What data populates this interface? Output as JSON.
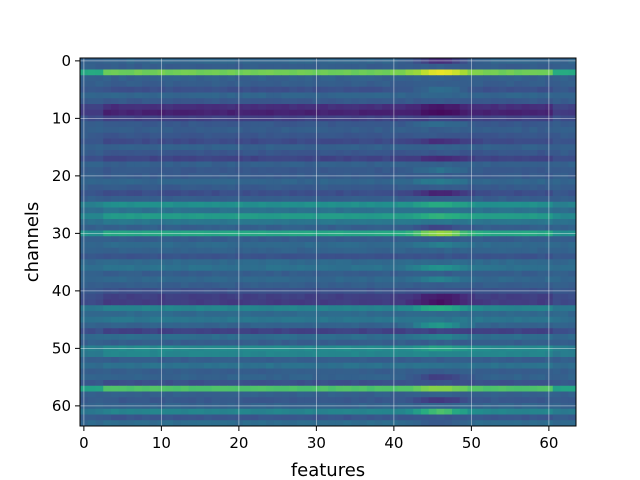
{
  "chart_data": {
    "type": "heatmap",
    "title": "",
    "xlabel": "features",
    "ylabel": "channels",
    "n_cols": 64,
    "n_rows": 64,
    "xlim": [
      -0.5,
      63.5
    ],
    "ylim": [
      63.5,
      -0.5
    ],
    "x_ticks": [
      0,
      10,
      20,
      30,
      40,
      50,
      60
    ],
    "y_ticks": [
      0,
      10,
      20,
      30,
      40,
      50,
      60
    ],
    "x_tick_labels": [
      "0",
      "10",
      "20",
      "30",
      "40",
      "50",
      "60"
    ],
    "y_tick_labels": [
      "0",
      "10",
      "20",
      "30",
      "40",
      "50",
      "60"
    ],
    "grid": true,
    "colormap": "viridis",
    "value_range": [
      0,
      1
    ],
    "row_base_values": [
      0.33,
      0.3,
      0.78,
      0.31,
      0.3,
      0.25,
      0.33,
      0.28,
      0.14,
      0.1,
      0.2,
      0.28,
      0.3,
      0.27,
      0.23,
      0.31,
      0.27,
      0.21,
      0.31,
      0.28,
      0.29,
      0.33,
      0.29,
      0.24,
      0.3,
      0.5,
      0.38,
      0.55,
      0.4,
      0.31,
      0.6,
      0.3,
      0.35,
      0.32,
      0.26,
      0.35,
      0.38,
      0.3,
      0.34,
      0.3,
      0.25,
      0.19,
      0.18,
      0.45,
      0.35,
      0.4,
      0.32,
      0.2,
      0.36,
      0.3,
      0.48,
      0.46,
      0.3,
      0.38,
      0.3,
      0.32,
      0.25,
      0.72,
      0.31,
      0.28,
      0.32,
      0.45,
      0.27,
      0.36
    ],
    "column_band_offsets": [
      {
        "row": 0,
        "offset": -0.2
      },
      {
        "row": 2,
        "offset": 0.2
      },
      {
        "row": 5,
        "offset": 0.12
      },
      {
        "row": 8,
        "offset": -0.08
      },
      {
        "row": 9,
        "offset": -0.06
      },
      {
        "row": 11,
        "offset": 0.08
      },
      {
        "row": 14,
        "offset": -0.1
      },
      {
        "row": 17,
        "offset": -0.1
      },
      {
        "row": 19,
        "offset": 0.1
      },
      {
        "row": 21,
        "offset": 0.1
      },
      {
        "row": 23,
        "offset": -0.14
      },
      {
        "row": 25,
        "offset": 0.12
      },
      {
        "row": 27,
        "offset": 0.1
      },
      {
        "row": 29,
        "offset": -0.1
      },
      {
        "row": 30,
        "offset": 0.25
      },
      {
        "row": 32,
        "offset": 0.08
      },
      {
        "row": 36,
        "offset": 0.15
      },
      {
        "row": 38,
        "offset": 0.1
      },
      {
        "row": 41,
        "offset": -0.12
      },
      {
        "row": 42,
        "offset": -0.14
      },
      {
        "row": 43,
        "offset": 0.18
      },
      {
        "row": 46,
        "offset": 0.22
      },
      {
        "row": 48,
        "offset": 0.08
      },
      {
        "row": 50,
        "offset": 0.1
      },
      {
        "row": 55,
        "offset": -0.14
      },
      {
        "row": 57,
        "offset": 0.1
      },
      {
        "row": 59,
        "offset": -0.12
      },
      {
        "row": 61,
        "offset": 0.25
      },
      {
        "row": 63,
        "offset": -0.08
      }
    ]
  }
}
